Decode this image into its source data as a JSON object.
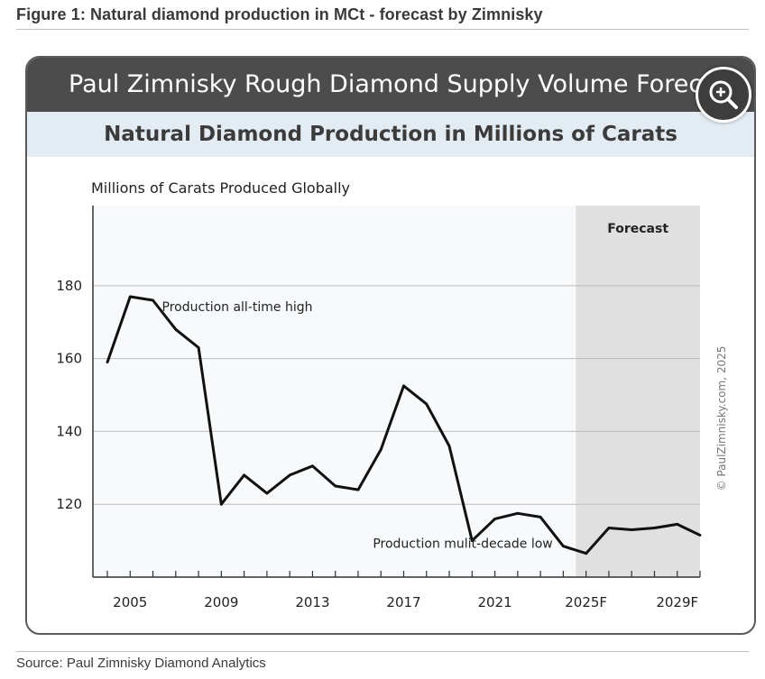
{
  "figure_title": "Figure 1: Natural diamond production in MCt - forecast by Zimnisky",
  "source": "Source: Paul Zimnisky Diamond Analytics",
  "banner_title": "Paul Zimnisky Rough Diamond Supply Volume Forecast",
  "subtitle": "Natural Diamond Production in Millions of Carats",
  "copyright": "© PaulZimnisky.com, 2025",
  "icons": {
    "zoom": "zoom-in-icon"
  },
  "chart_data": {
    "type": "line",
    "title": "Natural Diamond Production in Millions of Carats",
    "ylabel": "Millions of Carats Produced Globally",
    "xlabel": "",
    "x": [
      "2004",
      "2005",
      "2006",
      "2007",
      "2008",
      "2009",
      "2010",
      "2011",
      "2012",
      "2013",
      "2014",
      "2015",
      "2016",
      "2017",
      "2018",
      "2019",
      "2020",
      "2021",
      "2022",
      "2023",
      "2024",
      "2025F",
      "2026F",
      "2027F",
      "2028F",
      "2029F",
      "2030F"
    ],
    "series": [
      {
        "values": [
          159,
          177,
          176,
          168,
          163,
          120,
          128,
          123,
          128,
          130.5,
          125,
          124,
          135,
          152.5,
          147.5,
          136,
          110,
          116,
          117.5,
          116.5,
          108.5,
          106.5,
          113.5,
          113,
          113.5,
          114.5,
          111.5
        ]
      }
    ],
    "x_tick_labels": [
      "2005",
      "2009",
      "2013",
      "2017",
      "2021",
      "2025F",
      "2029F"
    ],
    "y_ticks": [
      120,
      140,
      160,
      180
    ],
    "ylim": [
      100,
      202
    ],
    "grid": "horizontal",
    "forecast_region": {
      "label": "Forecast",
      "start": "2025F",
      "end": "2030F",
      "color": "#e0e0e0"
    },
    "annotations": [
      {
        "text": "Production all-time high",
        "x": "2006",
        "y": 177
      },
      {
        "text": "Production mulit-decade low",
        "x": "2019",
        "y": 112
      }
    ],
    "line_color": "#111111",
    "plot_background": "#f8f9fa"
  }
}
